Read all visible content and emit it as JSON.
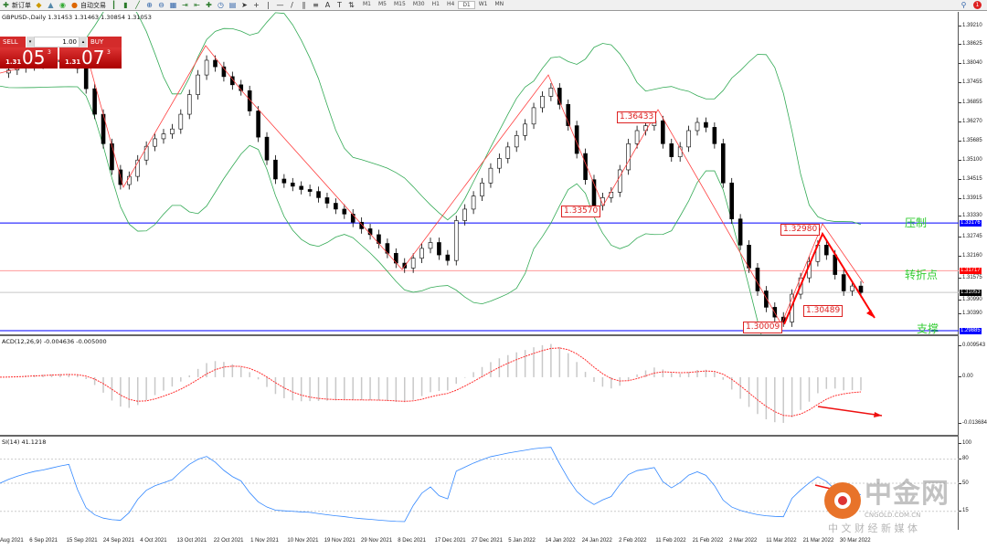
{
  "toolbar": {
    "new_order": "新订单",
    "auto_trading": "自动交易",
    "timeframes": [
      "M1",
      "M5",
      "M15",
      "M30",
      "H1",
      "H4",
      "D1",
      "W1",
      "MN"
    ],
    "active_timeframe": "D1",
    "notification_count": "1"
  },
  "chart": {
    "header": "GBPUSD-,Daily  1.31453 1.31463 1.30854 1.31053",
    "trade_panel": {
      "sell": "SELL",
      "buy": "BUY",
      "lot": "1.00",
      "sell_small": "1.31",
      "sell_big": "05",
      "sell_sup": "3",
      "buy_small": "1.31",
      "buy_big": "07",
      "buy_sup": "3"
    },
    "price_axis": [
      "1.39210",
      "1.38625",
      "1.38040",
      "1.37455",
      "1.36855",
      "1.36270",
      "1.35685",
      "1.35100",
      "1.34515",
      "1.33915",
      "1.33330",
      "1.32745",
      "1.32160",
      "1.31575",
      "1.30990",
      "1.30390"
    ],
    "price_range": [
      1.29885,
      1.3921
    ],
    "levels": [
      {
        "label": "压制",
        "price": 1.33176,
        "tag": "1.33176",
        "color": "#0000ff"
      },
      {
        "label": "转折点",
        "price": 1.31717,
        "tag": "1.31717",
        "color": "#ff0000"
      },
      {
        "label": "",
        "price": 1.31053,
        "tag": "1.31053",
        "color": "#000000"
      },
      {
        "label": "支撑",
        "price": 1.29885,
        "tag": "1.29885",
        "color": "#0000ff"
      }
    ],
    "annotations": [
      "1.36433",
      "1.33570",
      "1.32980",
      "1.30489",
      "1.30009"
    ],
    "closes": [
      1.3776,
      1.3785,
      1.3792,
      1.3798,
      1.3803,
      1.3806,
      1.381,
      1.3814,
      1.3817,
      1.379,
      1.3728,
      1.365,
      1.356,
      1.348,
      1.3435,
      1.346,
      1.351,
      1.3552,
      1.3575,
      1.359,
      1.3605,
      1.365,
      1.371,
      1.377,
      1.3815,
      1.3795,
      1.3765,
      1.374,
      1.3722,
      1.366,
      1.358,
      1.351,
      1.3452,
      1.344,
      1.343,
      1.342,
      1.3414,
      1.3395,
      1.3378,
      1.336,
      1.3345,
      1.332,
      1.33,
      1.3282,
      1.3255,
      1.3225,
      1.3195,
      1.318,
      1.321,
      1.324,
      1.3258,
      1.322,
      1.3203,
      1.3325,
      1.336,
      1.34,
      1.344,
      1.3485,
      1.3515,
      1.355,
      1.3585,
      1.362,
      1.367,
      1.3705,
      1.373,
      1.368,
      1.3615,
      1.353,
      1.345,
      1.3371,
      1.3395,
      1.3412,
      1.348,
      1.356,
      1.36,
      1.3615,
      1.363,
      1.356,
      1.352,
      1.355,
      1.36,
      1.3625,
      1.361,
      1.356,
      1.344,
      1.333,
      1.325,
      1.318,
      1.311,
      1.306,
      1.303,
      1.3015,
      1.31,
      1.315,
      1.32,
      1.325,
      1.322,
      1.316,
      1.311,
      1.3125,
      1.31053
    ],
    "colors": {
      "bull": "#ffffff",
      "bear": "#000000",
      "bands": "#33aa55",
      "zigzag": "#ff0000"
    }
  },
  "macd": {
    "header": "ACD(12,26,9) -0.004636 -0.005000",
    "axis": [
      "0.009543",
      "0.00",
      "-0.013684"
    ],
    "range": [
      -0.013684,
      0.009543
    ]
  },
  "rsi": {
    "header": "SI(14) 41.1218",
    "axis": [
      "100",
      "80",
      "50",
      "15"
    ],
    "color": "#3388ff"
  },
  "dates": [
    "Aug 2021",
    "6 Sep 2021",
    "15 Sep 2021",
    "24 Sep 2021",
    "4 Oct 2021",
    "13 Oct 2021",
    "22 Oct 2021",
    "1 Nov 2021",
    "10 Nov 2021",
    "19 Nov 2021",
    "29 Nov 2021",
    "8 Dec 2021",
    "17 Dec 2021",
    "27 Dec 2021",
    "5 Jan 2022",
    "14 Jan 2022",
    "24 Jan 2022",
    "2 Feb 2022",
    "11 Feb 2022",
    "21 Feb 2022",
    "2 Mar 2022",
    "11 Mar 2022",
    "21 Mar 2022",
    "30 Mar 2022"
  ],
  "watermark": {
    "name": "中金网",
    "url": "CNGOLD.COM.CN",
    "tagline": "中 文 财 经 新 媒 体"
  }
}
